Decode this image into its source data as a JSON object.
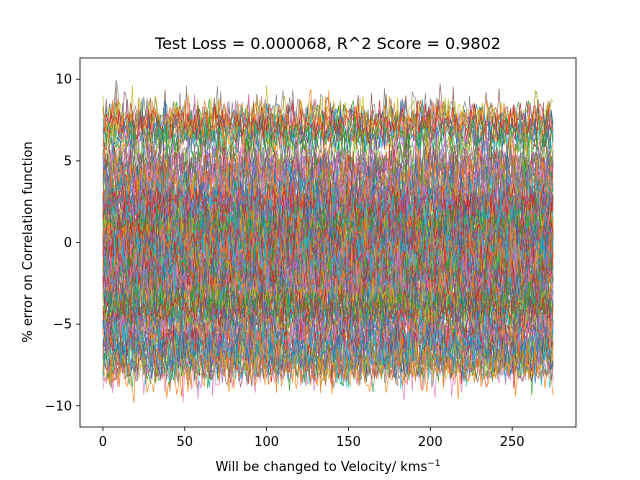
{
  "chart_data": {
    "type": "line",
    "title": "Test Loss = 0.000068, R^2 Score = 0.9802",
    "xlabel": "Will be changed to Velocity/ kms",
    "xlabel_unit_exponent": "−1",
    "ylabel": "% error on Correlation function",
    "xlim": [
      -14,
      289
    ],
    "ylim": [
      -11.3,
      11.3
    ],
    "x_ticks": [
      0,
      50,
      100,
      150,
      200,
      250
    ],
    "x_tick_labels": [
      "0",
      "50",
      "100",
      "150",
      "200",
      "250"
    ],
    "y_ticks": [
      -10,
      -5,
      0,
      5,
      10
    ],
    "y_tick_labels": [
      "−10",
      "−5",
      "0",
      "5",
      "10"
    ],
    "x_range": [
      0,
      275
    ],
    "n_points_per_series": 276,
    "band_levels": [
      7.0,
      4.5,
      3.0,
      2.0,
      1.0,
      0.3,
      -0.5,
      -1.5,
      -2.5,
      -3.5,
      -4.5,
      -6.0,
      -7.0
    ],
    "noise_amplitude": 1.1,
    "grid": false,
    "legend": "none",
    "series_colors": [
      "#1f77b4",
      "#ff7f0e",
      "#2ca02c",
      "#d62728",
      "#9467bd",
      "#8c564b",
      "#e377c2",
      "#7f7f7f",
      "#bcbd22",
      "#17becf"
    ]
  }
}
